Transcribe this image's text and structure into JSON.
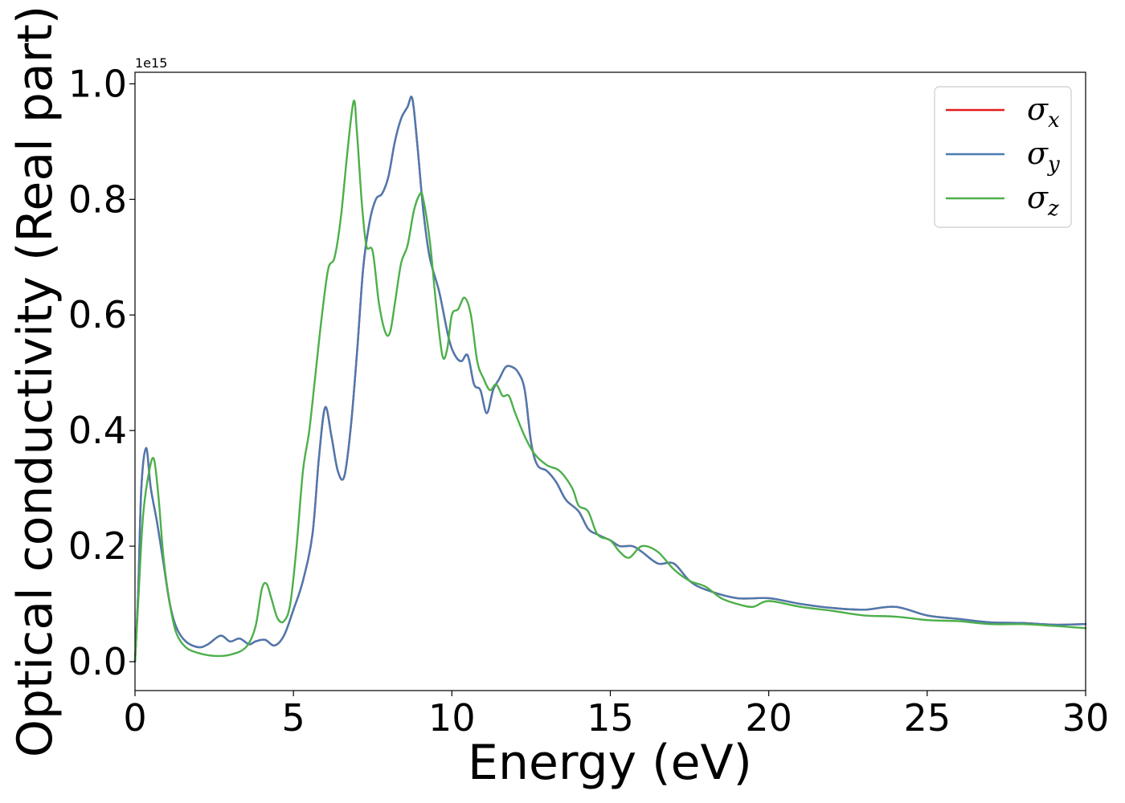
{
  "chart_data": {
    "type": "line",
    "title": "",
    "xlabel": "Energy (eV)",
    "ylabel": "Optical conductivity (Real part)",
    "y_offset_label": "1e15",
    "xlim": [
      0,
      30
    ],
    "ylim": [
      -0.05,
      1.02
    ],
    "x_ticks": [
      0,
      5,
      10,
      15,
      20,
      25,
      30
    ],
    "x_tick_labels": [
      "0",
      "5",
      "10",
      "15",
      "20",
      "25",
      "30"
    ],
    "y_ticks": [
      0.0,
      0.2,
      0.4,
      0.6,
      0.8,
      1.0
    ],
    "y_tick_labels": [
      "0.0",
      "0.2",
      "0.4",
      "0.6",
      "0.8",
      "1.0"
    ],
    "grid": false,
    "legend_position": "top-right",
    "series": [
      {
        "name": "σx",
        "name_main": "σ",
        "name_sub": "x",
        "color": "#e41a1c",
        "x": [
          0,
          0.1,
          0.2,
          0.35,
          0.5,
          0.7,
          0.9,
          1.1,
          1.3,
          1.6,
          2.0,
          2.3,
          2.7,
          3.0,
          3.3,
          3.6,
          3.8,
          4.1,
          4.4,
          4.7,
          5.0,
          5.3,
          5.6,
          5.8,
          6.0,
          6.2,
          6.4,
          6.6,
          6.8,
          7.0,
          7.2,
          7.4,
          7.6,
          7.8,
          8.0,
          8.2,
          8.4,
          8.6,
          8.75,
          8.9,
          9.1,
          9.3,
          9.6,
          9.9,
          10.1,
          10.3,
          10.5,
          10.7,
          10.9,
          11.1,
          11.3,
          11.5,
          11.7,
          11.9,
          12.1,
          12.3,
          12.5,
          12.7,
          13.0,
          13.3,
          13.6,
          14.0,
          14.3,
          14.6,
          15.0,
          15.3,
          15.7,
          16.0,
          16.5,
          17.0,
          17.5,
          18.0,
          19.0,
          20.0,
          21.0,
          22.0,
          23.0,
          24.0,
          25.0,
          26.0,
          27.0,
          28.0,
          29.0,
          30.0
        ],
        "values": [
          0.0,
          0.12,
          0.3,
          0.37,
          0.3,
          0.24,
          0.17,
          0.1,
          0.06,
          0.035,
          0.025,
          0.03,
          0.045,
          0.035,
          0.04,
          0.03,
          0.035,
          0.038,
          0.028,
          0.045,
          0.09,
          0.14,
          0.22,
          0.35,
          0.44,
          0.39,
          0.33,
          0.32,
          0.4,
          0.53,
          0.68,
          0.76,
          0.8,
          0.81,
          0.84,
          0.9,
          0.94,
          0.96,
          0.975,
          0.9,
          0.78,
          0.7,
          0.64,
          0.56,
          0.53,
          0.52,
          0.53,
          0.48,
          0.47,
          0.43,
          0.47,
          0.49,
          0.51,
          0.51,
          0.5,
          0.47,
          0.38,
          0.34,
          0.33,
          0.31,
          0.28,
          0.26,
          0.23,
          0.22,
          0.21,
          0.2,
          0.2,
          0.19,
          0.17,
          0.17,
          0.14,
          0.125,
          0.11,
          0.11,
          0.1,
          0.093,
          0.09,
          0.095,
          0.08,
          0.074,
          0.068,
          0.067,
          0.064,
          0.065
        ]
      },
      {
        "name": "σy",
        "name_main": "σ",
        "name_sub": "y",
        "color": "#4a7ab0",
        "x": [
          0,
          0.1,
          0.2,
          0.35,
          0.5,
          0.7,
          0.9,
          1.1,
          1.3,
          1.6,
          2.0,
          2.3,
          2.7,
          3.0,
          3.3,
          3.6,
          3.8,
          4.1,
          4.4,
          4.7,
          5.0,
          5.3,
          5.6,
          5.8,
          6.0,
          6.2,
          6.4,
          6.6,
          6.8,
          7.0,
          7.2,
          7.4,
          7.6,
          7.8,
          8.0,
          8.2,
          8.4,
          8.6,
          8.75,
          8.9,
          9.1,
          9.3,
          9.6,
          9.9,
          10.1,
          10.3,
          10.5,
          10.7,
          10.9,
          11.1,
          11.3,
          11.5,
          11.7,
          11.9,
          12.1,
          12.3,
          12.5,
          12.7,
          13.0,
          13.3,
          13.6,
          14.0,
          14.3,
          14.6,
          15.0,
          15.3,
          15.7,
          16.0,
          16.5,
          17.0,
          17.5,
          18.0,
          19.0,
          20.0,
          21.0,
          22.0,
          23.0,
          24.0,
          25.0,
          26.0,
          27.0,
          28.0,
          29.0,
          30.0
        ],
        "values": [
          0.0,
          0.12,
          0.3,
          0.37,
          0.3,
          0.24,
          0.17,
          0.1,
          0.06,
          0.035,
          0.025,
          0.03,
          0.045,
          0.035,
          0.04,
          0.03,
          0.035,
          0.038,
          0.028,
          0.045,
          0.09,
          0.14,
          0.22,
          0.35,
          0.44,
          0.39,
          0.33,
          0.32,
          0.4,
          0.53,
          0.68,
          0.76,
          0.8,
          0.81,
          0.84,
          0.9,
          0.94,
          0.96,
          0.975,
          0.9,
          0.78,
          0.7,
          0.64,
          0.56,
          0.53,
          0.52,
          0.53,
          0.48,
          0.47,
          0.43,
          0.47,
          0.49,
          0.51,
          0.51,
          0.5,
          0.47,
          0.38,
          0.34,
          0.33,
          0.31,
          0.28,
          0.26,
          0.23,
          0.22,
          0.21,
          0.2,
          0.2,
          0.19,
          0.17,
          0.17,
          0.14,
          0.125,
          0.11,
          0.11,
          0.1,
          0.093,
          0.09,
          0.095,
          0.08,
          0.074,
          0.068,
          0.067,
          0.064,
          0.065
        ]
      },
      {
        "name": "σz",
        "name_main": "σ",
        "name_sub": "z",
        "color": "#4daf4a",
        "x": [
          0,
          0.1,
          0.25,
          0.45,
          0.6,
          0.75,
          0.9,
          1.1,
          1.3,
          1.6,
          2.0,
          2.5,
          3.0,
          3.5,
          3.8,
          4.0,
          4.15,
          4.3,
          4.5,
          4.7,
          4.9,
          5.1,
          5.3,
          5.5,
          5.7,
          5.9,
          6.1,
          6.3,
          6.5,
          6.7,
          6.9,
          7.0,
          7.15,
          7.3,
          7.5,
          7.7,
          7.9,
          8.05,
          8.2,
          8.4,
          8.6,
          8.8,
          9.0,
          9.1,
          9.3,
          9.5,
          9.7,
          9.85,
          10.0,
          10.2,
          10.4,
          10.6,
          10.8,
          11.0,
          11.2,
          11.4,
          11.6,
          11.8,
          12.0,
          12.3,
          12.6,
          13.0,
          13.4,
          13.8,
          14.0,
          14.3,
          14.6,
          15.0,
          15.3,
          15.6,
          16.0,
          16.5,
          17.0,
          17.5,
          18.0,
          18.5,
          19.0,
          19.5,
          20.0,
          21.0,
          22.0,
          23.0,
          24.0,
          25.0,
          26.0,
          27.0,
          28.0,
          29.0,
          30.0
        ],
        "values": [
          0.0,
          0.1,
          0.25,
          0.33,
          0.35,
          0.28,
          0.18,
          0.1,
          0.05,
          0.025,
          0.015,
          0.01,
          0.012,
          0.025,
          0.06,
          0.125,
          0.135,
          0.11,
          0.075,
          0.07,
          0.1,
          0.2,
          0.33,
          0.4,
          0.5,
          0.6,
          0.68,
          0.7,
          0.77,
          0.88,
          0.97,
          0.92,
          0.8,
          0.72,
          0.71,
          0.62,
          0.57,
          0.57,
          0.62,
          0.69,
          0.72,
          0.78,
          0.81,
          0.8,
          0.73,
          0.62,
          0.53,
          0.54,
          0.6,
          0.61,
          0.63,
          0.6,
          0.52,
          0.49,
          0.47,
          0.48,
          0.46,
          0.46,
          0.43,
          0.39,
          0.36,
          0.34,
          0.33,
          0.3,
          0.27,
          0.26,
          0.22,
          0.21,
          0.19,
          0.18,
          0.2,
          0.19,
          0.16,
          0.14,
          0.13,
          0.11,
          0.1,
          0.095,
          0.105,
          0.095,
          0.088,
          0.08,
          0.078,
          0.072,
          0.07,
          0.065,
          0.065,
          0.062,
          0.058
        ]
      }
    ]
  }
}
